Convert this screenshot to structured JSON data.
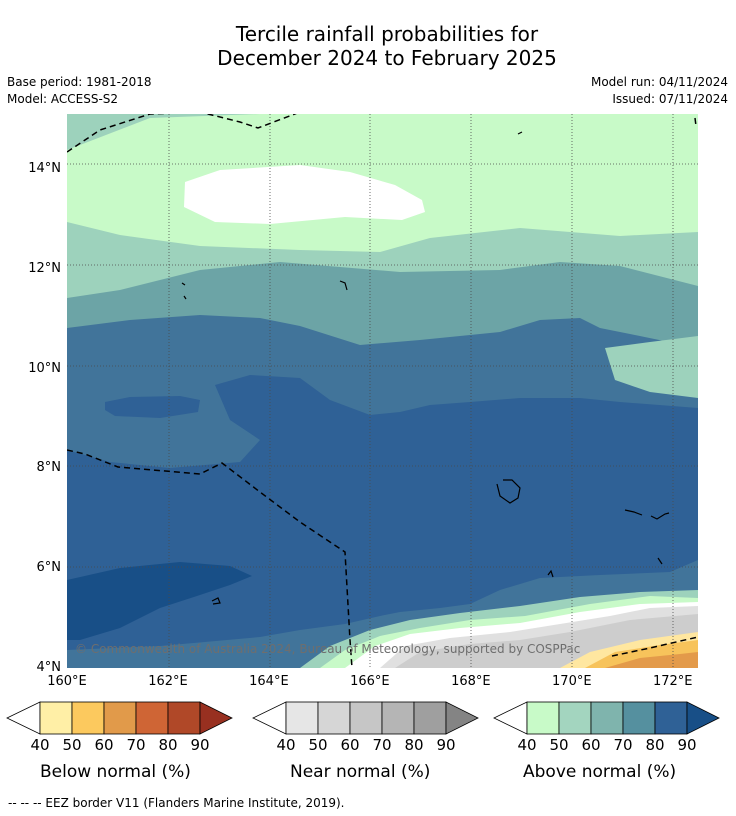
{
  "title": {
    "line1": "Tercile rainfall probabilities for",
    "line2": "December 2024 to February 2025"
  },
  "meta": {
    "base_period": "Base period: 1981-2018",
    "model": "Model: ACCESS-S2",
    "model_run": "Model run: 04/11/2024",
    "issued": "Issued: 07/11/2024"
  },
  "map": {
    "lon_labels": [
      "160°E",
      "162°E",
      "164°E",
      "166°E",
      "168°E",
      "170°E",
      "172°E"
    ],
    "lat_labels": [
      "14°N",
      "12°N",
      "10°N",
      "8°N",
      "6°N",
      "4°N"
    ],
    "extent": {
      "lon_min": 160,
      "lon_max": 172.5,
      "lat_min": 4,
      "lat_max": 15.1
    },
    "copyright": "© Commonwealth of Australia 2024, Bureau of Meteorology, supported by COSPPac",
    "colors": {
      "above_50": "#c8fac8",
      "above_60": "#9dd2bc",
      "above_70": "#6ca4a6",
      "above_80": "#41749a",
      "above_90": "#2f6196",
      "above_90_plus": "#184f87",
      "near_40": "#ffffff",
      "near_50": "#e0e0e0",
      "near_60": "#cdcdcd",
      "below_50": "#ffe7a0",
      "below_60": "#f7c35b",
      "below_70": "#e39a4a"
    }
  },
  "colorbars": [
    {
      "title": "Below normal (%)",
      "ticks": [
        "40",
        "50",
        "60",
        "70",
        "80",
        "90"
      ],
      "colors": [
        "#ffefa6",
        "#fcc95e",
        "#e19a4a",
        "#cf6535",
        "#b04828",
        "#983020"
      ]
    },
    {
      "title": "Near normal (%)",
      "ticks": [
        "40",
        "50",
        "60",
        "70",
        "80",
        "90"
      ],
      "colors": [
        "#e6e6e6",
        "#d6d6d6",
        "#c6c6c6",
        "#b5b5b5",
        "#9f9f9f",
        "#848484"
      ]
    },
    {
      "title": "Above normal (%)",
      "ticks": [
        "40",
        "50",
        "60",
        "70",
        "80",
        "90"
      ],
      "colors": [
        "#c8fac8",
        "#a3d5bf",
        "#7fb4ad",
        "#55909f",
        "#2f6196",
        "#184f87"
      ]
    }
  ],
  "footnote": "--  --  -- EEZ border V11 (Flanders Marine Institute, 2019)."
}
